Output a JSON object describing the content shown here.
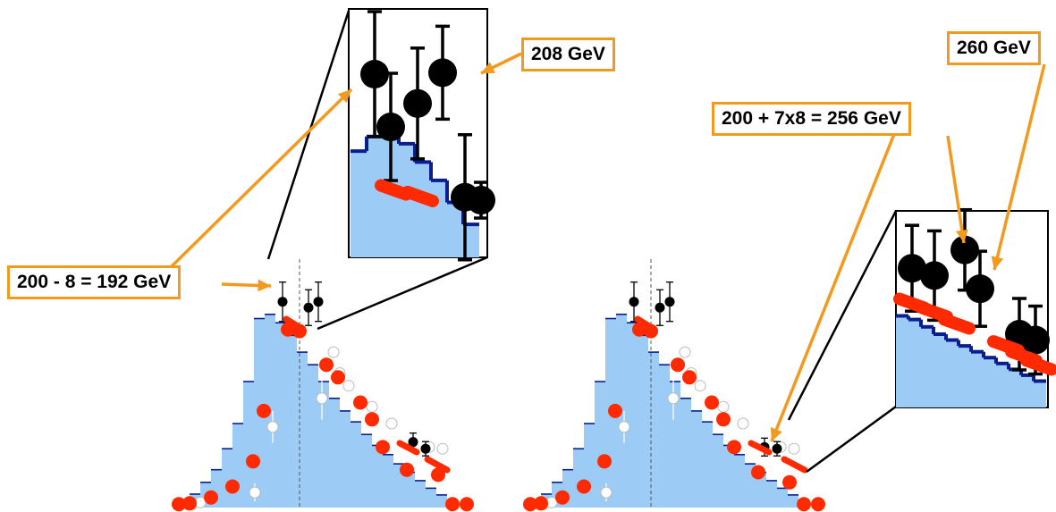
{
  "colors": {
    "histogram_fill": "#9ccbf5",
    "histogram_line": "#0a1f8f",
    "histogram_edge_red": "#cc1d1d",
    "red_points": "#ff2a00",
    "black_points": "#000000",
    "open_points": "#ffffff",
    "callout": "#f29a1f"
  },
  "labels": {
    "m192": "200 - 8 = 192 GeV",
    "m208": "208 GeV",
    "m256": "200 + 7x8 = 256 GeV",
    "m260": "260 GeV"
  },
  "chart_data": [
    {
      "type": "bar",
      "name": "left-panel",
      "reference_line": true,
      "histogram": [
        0.8,
        1.6,
        3,
        4.5,
        7,
        10,
        15,
        22.5,
        23,
        22,
        20.5,
        18.5,
        17,
        15,
        13,
        11.5,
        10.2,
        8.7,
        7.4,
        6.3,
        5.2,
        4.2,
        3.2,
        2.3,
        1.5,
        0.9
      ],
      "red_points": [
        0.4,
        0.5,
        1.2,
        2.5,
        5.5,
        11.5,
        21.2,
        21,
        17,
        15.5,
        12.5,
        10.5,
        7.2,
        4.5,
        3.9,
        0.4,
        0.4
      ],
      "black_points": [
        24.5,
        23.8,
        24.5,
        7.8,
        7
      ],
      "open_points": [
        0.4,
        0.6,
        1.8,
        9.6,
        13,
        18.5,
        16,
        14.5,
        12,
        10,
        7.2,
        7
      ]
    },
    {
      "type": "bar",
      "name": "right-panel",
      "reference_line": true,
      "histogram": [
        0.8,
        1.6,
        3,
        4.5,
        7,
        10,
        15,
        22.5,
        23,
        22,
        20.5,
        18.5,
        17,
        15,
        13,
        11.5,
        10.2,
        8.7,
        7.4,
        6.3,
        5.2,
        4.2,
        3.2,
        2.3,
        1.5,
        0.9
      ],
      "red_points": [
        0.4,
        0.5,
        1.2,
        2.5,
        5.5,
        11.5,
        21.2,
        21,
        17,
        15.5,
        12.5,
        10.5,
        7.2,
        4.2,
        3.0,
        0.4,
        0.4
      ],
      "black_points": [
        24.5,
        23.8,
        24.5,
        7.2,
        7
      ],
      "open_points": [
        0.4,
        0.6,
        1.8,
        9.6,
        13,
        18.5,
        16,
        14.5,
        12,
        10,
        7.2,
        7
      ]
    }
  ],
  "insets": [
    {
      "name": "left-inset",
      "histogram": [
        14.5,
        16.5,
        16.5,
        15.5,
        13,
        10.5,
        7.5,
        4.5
      ],
      "black_points": [
        25,
        17.8,
        21,
        25.2,
        8.2,
        7.8
      ],
      "red_points": [
        9.2,
        8.3
      ]
    },
    {
      "name": "right-inset",
      "histogram": [
        12.5,
        12,
        11,
        10,
        9.2,
        8.4,
        7.6,
        6.8,
        6,
        5.2,
        4.4,
        3.6
      ],
      "black_points": [
        19,
        18,
        21.5,
        16.2,
        10,
        9.2
      ],
      "red_points": [
        14.2,
        13,
        11.4,
        8.4,
        7.0,
        5.8
      ]
    }
  ]
}
